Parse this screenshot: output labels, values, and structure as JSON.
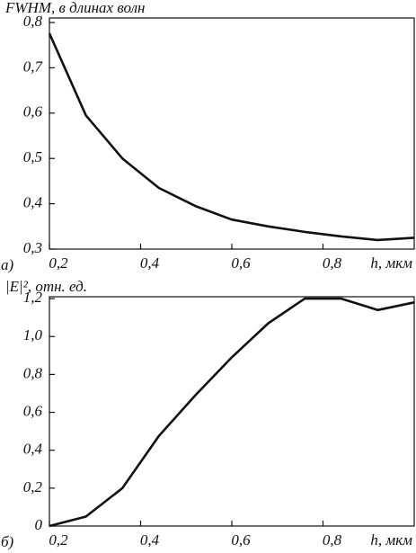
{
  "chart_data": [
    {
      "type": "line",
      "panel_label": "а)",
      "y_label": "FWHM, в длинах волн",
      "x_label": "h, мкм",
      "color": "#111111",
      "x": [
        0.2,
        0.28,
        0.36,
        0.44,
        0.52,
        0.6,
        0.68,
        0.76,
        0.84,
        0.92,
        1.0
      ],
      "values": [
        0.776,
        0.595,
        0.5,
        0.435,
        0.395,
        0.365,
        0.35,
        0.338,
        0.328,
        0.32,
        0.325
      ],
      "xlim": [
        0.2,
        1.0
      ],
      "ylim": [
        0.3,
        0.81
      ],
      "xticks": [
        {
          "value": 0.2,
          "label": "0,2"
        },
        {
          "value": 0.4,
          "label": "0,4"
        },
        {
          "value": 0.6,
          "label": "0,6"
        },
        {
          "value": 0.8,
          "label": "0,8"
        }
      ],
      "yticks": [
        {
          "value": 0.3,
          "label": "0,3"
        },
        {
          "value": 0.4,
          "label": "0,4"
        },
        {
          "value": 0.5,
          "label": "0,5"
        },
        {
          "value": 0.6,
          "label": "0,6"
        },
        {
          "value": 0.7,
          "label": "0,7"
        },
        {
          "value": 0.8,
          "label": "0,8"
        }
      ]
    },
    {
      "type": "line",
      "panel_label": "б)",
      "y_label": "|E|², отн. ед.",
      "x_label": "h, мкм",
      "color": "#111111",
      "x": [
        0.2,
        0.28,
        0.36,
        0.44,
        0.52,
        0.6,
        0.68,
        0.76,
        0.84,
        0.92,
        1.0
      ],
      "values": [
        0,
        0.05,
        0.2,
        0.475,
        0.69,
        0.89,
        1.07,
        1.2,
        1.2,
        1.14,
        1.18
      ],
      "xlim": [
        0.2,
        1.0
      ],
      "ylim": [
        0,
        1.21
      ],
      "xticks": [
        {
          "value": 0.2,
          "label": "0,2"
        },
        {
          "value": 0.4,
          "label": "0,4"
        },
        {
          "value": 0.6,
          "label": "0,6"
        },
        {
          "value": 0.8,
          "label": "0,8"
        }
      ],
      "yticks": [
        0,
        {
          "value": 0.2,
          "label": "0,2"
        },
        {
          "value": 0.4,
          "label": "0,4"
        },
        {
          "value": 0.6,
          "label": "0,6"
        },
        {
          "value": 0.8,
          "label": "0,8"
        },
        {
          "value": 1.0,
          "label": "1,0"
        },
        {
          "value": 1.2,
          "label": "1,2"
        }
      ]
    }
  ]
}
